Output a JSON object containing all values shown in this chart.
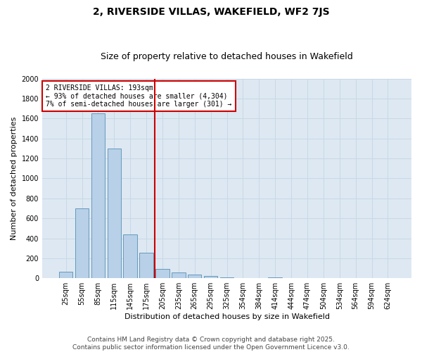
{
  "title": "2, RIVERSIDE VILLAS, WAKEFIELD, WF2 7JS",
  "subtitle": "Size of property relative to detached houses in Wakefield",
  "xlabel": "Distribution of detached houses by size in Wakefield",
  "ylabel": "Number of detached properties",
  "categories": [
    "25sqm",
    "55sqm",
    "85sqm",
    "115sqm",
    "145sqm",
    "175sqm",
    "205sqm",
    "235sqm",
    "265sqm",
    "295sqm",
    "325sqm",
    "354sqm",
    "384sqm",
    "414sqm",
    "444sqm",
    "474sqm",
    "504sqm",
    "534sqm",
    "564sqm",
    "594sqm",
    "624sqm"
  ],
  "values": [
    65,
    700,
    1650,
    1300,
    440,
    255,
    90,
    55,
    35,
    20,
    8,
    0,
    0,
    12,
    0,
    0,
    0,
    0,
    0,
    0,
    0
  ],
  "bar_color": "#b8d0e8",
  "bar_edge_color": "#6699bb",
  "vline_color": "#cc0000",
  "annotation_text": "2 RIVERSIDE VILLAS: 193sqm\n← 93% of detached houses are smaller (4,304)\n7% of semi-detached houses are larger (301) →",
  "annotation_box_color": "#ffffff",
  "annotation_box_edge": "#cc0000",
  "ylim": [
    0,
    2000
  ],
  "yticks": [
    0,
    200,
    400,
    600,
    800,
    1000,
    1200,
    1400,
    1600,
    1800,
    2000
  ],
  "grid_color": "#c8d8e8",
  "bg_color": "#dde8f2",
  "footer": "Contains HM Land Registry data © Crown copyright and database right 2025.\nContains public sector information licensed under the Open Government Licence v3.0.",
  "title_fontsize": 10,
  "subtitle_fontsize": 9,
  "xlabel_fontsize": 8,
  "ylabel_fontsize": 8,
  "tick_fontsize": 7,
  "footer_fontsize": 6.5
}
